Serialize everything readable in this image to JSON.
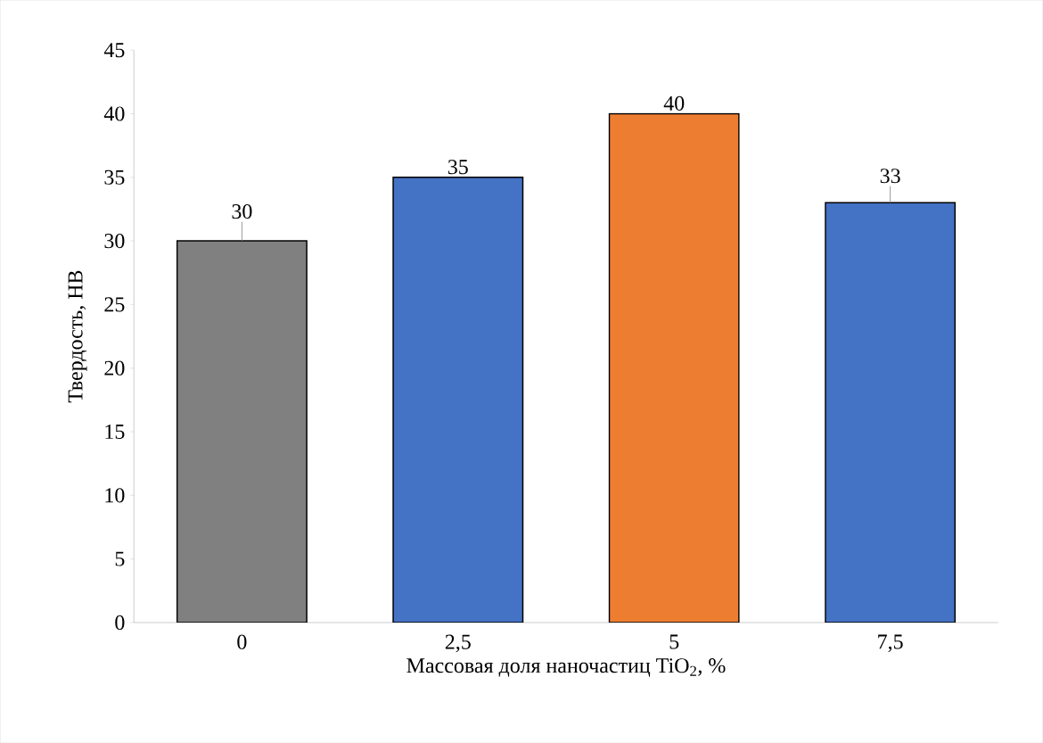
{
  "chart_data": {
    "type": "bar",
    "xlabel": "Массовая доля наночастиц TiO$_{2}$, %",
    "ylabel": "Твердость, HB",
    "categories": [
      "0",
      "2,5",
      "5",
      "7,5"
    ],
    "values": [
      30,
      35,
      40,
      33
    ],
    "colors": [
      "#808080",
      "#4472c4",
      "#ed7d31",
      "#4472c4"
    ],
    "errors": [
      [
        30,
        31.5
      ],
      null,
      null,
      [
        33,
        34.3
      ]
    ],
    "ylim": [
      0,
      45
    ],
    "yticks": [
      0,
      5,
      10,
      15,
      20,
      25,
      30,
      35,
      40,
      45
    ],
    "grid": false,
    "data_labels": true
  }
}
